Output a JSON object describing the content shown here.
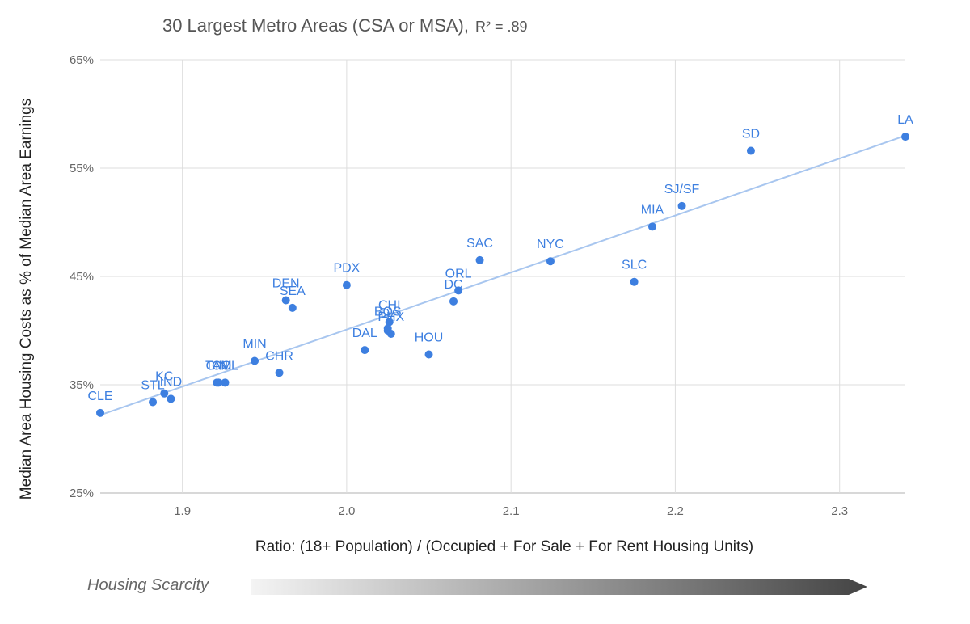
{
  "chart_data": {
    "type": "scatter",
    "title": "30 Largest Metro Areas (CSA or MSA),",
    "title_stat": "R² = .89",
    "xlabel": "Ratio: (18+ Population) / (Occupied + For Sale + For Rent Housing Units)",
    "ylabel": "Median Area Housing Costs as % of Median Area Earnings",
    "xlim": [
      1.85,
      2.34
    ],
    "ylim": [
      25,
      65
    ],
    "x_ticks": [
      {
        "value": 1.9,
        "label": "1.9"
      },
      {
        "value": 2.0,
        "label": "2.0"
      },
      {
        "value": 2.1,
        "label": "2.1"
      },
      {
        "value": 2.2,
        "label": "2.2"
      },
      {
        "value": 2.3,
        "label": "2.3"
      }
    ],
    "y_ticks": [
      {
        "value": 25,
        "label": "25%"
      },
      {
        "value": 35,
        "label": "35%"
      },
      {
        "value": 45,
        "label": "45%"
      },
      {
        "value": 55,
        "label": "55%"
      },
      {
        "value": 65,
        "label": "65%"
      }
    ],
    "grid": true,
    "legend": "none",
    "point_color": "#3d7fe0",
    "trendline_color": "#a8c6ef",
    "trendline": [
      {
        "x": 1.85,
        "y": 32.2
      },
      {
        "x": 2.34,
        "y": 58.0
      }
    ],
    "points": [
      {
        "label": "CLE",
        "x": 1.85,
        "y": 32.4
      },
      {
        "label": "STL",
        "x": 1.882,
        "y": 33.4
      },
      {
        "label": "KC",
        "x": 1.889,
        "y": 34.2
      },
      {
        "label": "IND",
        "x": 1.893,
        "y": 33.7
      },
      {
        "label": "TAM",
        "x": 1.922,
        "y": 35.2
      },
      {
        "label": "CIN",
        "x": 1.921,
        "y": 35.2
      },
      {
        "label": "COL",
        "x": 1.926,
        "y": 35.2
      },
      {
        "label": "MIN",
        "x": 1.944,
        "y": 37.2
      },
      {
        "label": "CHR",
        "x": 1.959,
        "y": 36.1
      },
      {
        "label": "DEN",
        "x": 1.963,
        "y": 42.8
      },
      {
        "label": "SEA",
        "x": 1.967,
        "y": 42.1
      },
      {
        "label": "PDX",
        "x": 2.0,
        "y": 44.2
      },
      {
        "label": "DAL",
        "x": 2.011,
        "y": 38.2
      },
      {
        "label": "LV",
        "x": 2.025,
        "y": 40.0
      },
      {
        "label": "CHI",
        "x": 2.026,
        "y": 40.8
      },
      {
        "label": "PHX",
        "x": 2.027,
        "y": 39.7
      },
      {
        "label": "BOS",
        "x": 2.025,
        "y": 40.2
      },
      {
        "label": "HOU",
        "x": 2.05,
        "y": 37.8
      },
      {
        "label": "DC",
        "x": 2.065,
        "y": 42.7
      },
      {
        "label": "ORL",
        "x": 2.068,
        "y": 43.7
      },
      {
        "label": "SAC",
        "x": 2.081,
        "y": 46.5
      },
      {
        "label": "NYC",
        "x": 2.124,
        "y": 46.4
      },
      {
        "label": "SLC",
        "x": 2.175,
        "y": 44.5
      },
      {
        "label": "MIA",
        "x": 2.186,
        "y": 49.6
      },
      {
        "label": "SJ/SF",
        "x": 2.204,
        "y": 51.5
      },
      {
        "label": "SD",
        "x": 2.246,
        "y": 56.6
      },
      {
        "label": "LA",
        "x": 2.34,
        "y": 57.9
      }
    ]
  },
  "scarcity": {
    "label": "Housing Scarcity"
  }
}
